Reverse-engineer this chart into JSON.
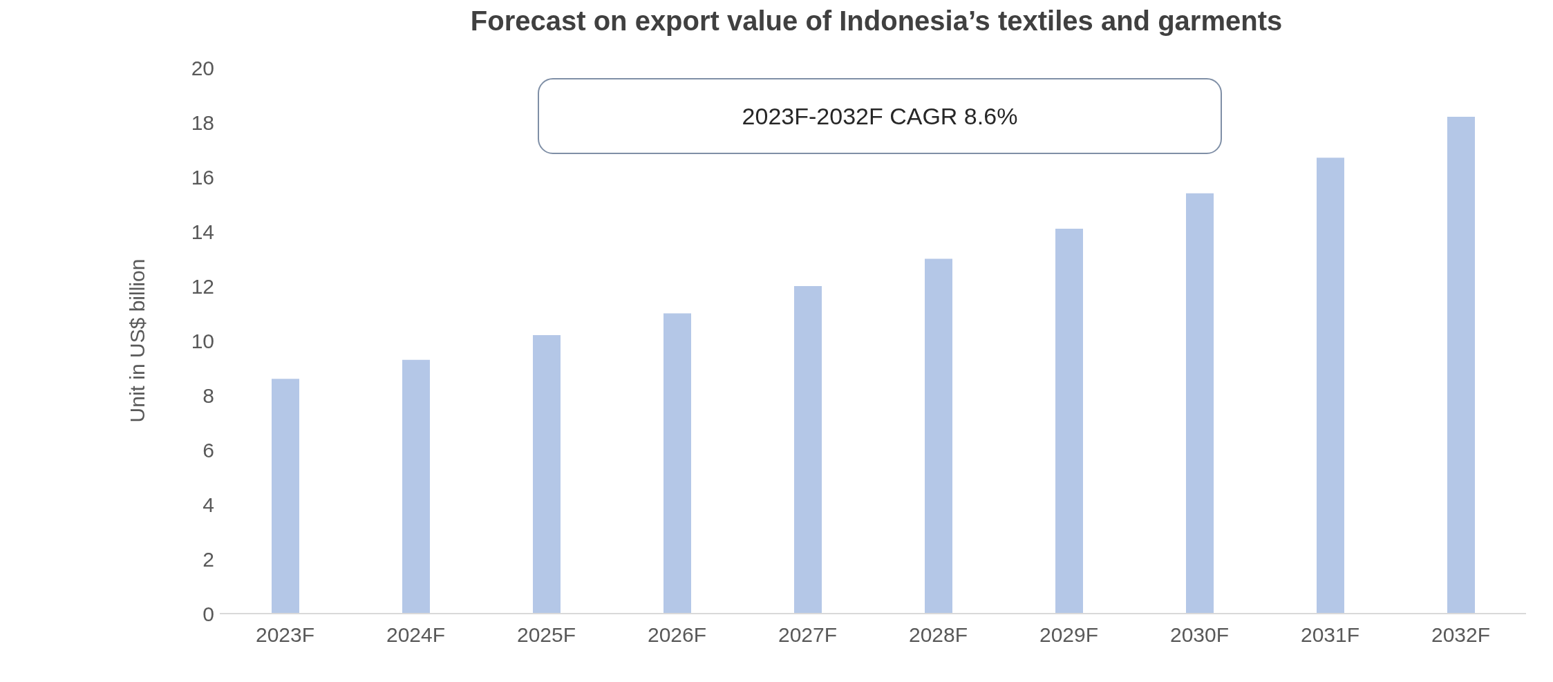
{
  "chart_data": {
    "type": "bar",
    "title": "Forecast on export value of Indonesia’s textiles and garments",
    "ylabel": "Unit in US$ billion",
    "categories": [
      "2023F",
      "2024F",
      "2025F",
      "2026F",
      "2027F",
      "2028F",
      "2029F",
      "2030F",
      "2031F",
      "2032F"
    ],
    "values": [
      8.6,
      9.3,
      10.2,
      11.0,
      12.0,
      13.0,
      14.1,
      15.4,
      16.7,
      18.2
    ],
    "color": "#b4c7e7",
    "ylim": [
      0,
      20
    ],
    "yticks": [
      0,
      2,
      4,
      6,
      8,
      10,
      12,
      14,
      16,
      18,
      20
    ],
    "grid": false,
    "legend": false,
    "annotations": [
      "2023F-2032F CAGR 8.6%"
    ]
  }
}
